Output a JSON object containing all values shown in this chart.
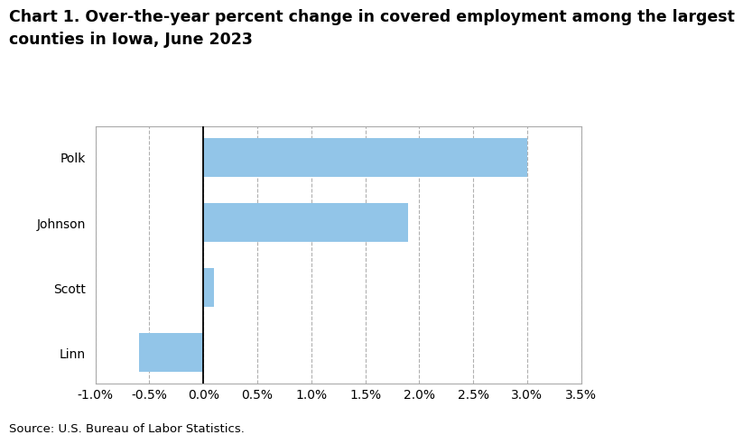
{
  "categories": [
    "Linn",
    "Scott",
    "Johnson",
    "Polk"
  ],
  "values": [
    -0.006,
    0.001,
    0.019,
    0.03
  ],
  "bar_color": "#92C5E8",
  "title_line1": "Chart 1. Over-the-year percent change in covered employment among the largest",
  "title_line2": "counties in Iowa, June 2023",
  "source": "Source: U.S. Bureau of Labor Statistics.",
  "xlim": [
    -0.01,
    0.035
  ],
  "xticks": [
    -0.01,
    -0.005,
    0.0,
    0.005,
    0.01,
    0.015,
    0.02,
    0.025,
    0.03,
    0.035
  ],
  "xtick_labels": [
    "-1.0%",
    "-0.5%",
    "0.0%",
    "0.5%",
    "1.0%",
    "1.5%",
    "2.0%",
    "2.5%",
    "3.0%",
    "3.5%"
  ],
  "background_color": "#ffffff",
  "title_fontsize": 12.5,
  "label_fontsize": 10,
  "source_fontsize": 9.5,
  "bar_height": 0.6,
  "grid_color": "#b0b0b0",
  "spine_color": "#aaaaaa"
}
